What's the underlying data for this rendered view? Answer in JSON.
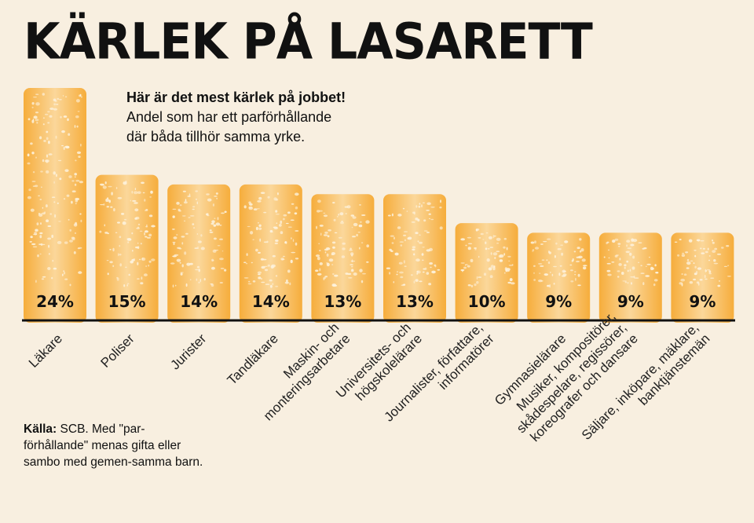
{
  "header": {
    "title": "KÄRLEK PÅ LASARETT",
    "subtitle_bold": "Här är det mest kärlek på jobbet!",
    "subtitle_line1": "Andel som har ett parförhållande",
    "subtitle_line2": "där båda tillhör samma yrke."
  },
  "source": {
    "label": "Källa:",
    "text": "SCB. Med \"par-förhållande\" menas gifta eller sambo med gemen-samma barn."
  },
  "colors": {
    "bar": "#f6ad3c",
    "bar_light": "#fbd79a",
    "speckle": "#fdf2dd",
    "axis": "#111111",
    "background": "#f8efe0"
  },
  "chart_data": {
    "type": "bar",
    "title": "KÄRLEK PÅ LASARETT",
    "unit": "%",
    "ylim": [
      0,
      24
    ],
    "grid": false,
    "categories": [
      [
        "Läkare"
      ],
      [
        "Poliser"
      ],
      [
        "Jurister"
      ],
      [
        "Tandläkare"
      ],
      [
        "Maskin- och",
        "monteringsarbetare"
      ],
      [
        "Universitets- och",
        "högskolelärare"
      ],
      [
        "Journalister, författare,",
        "informatörer"
      ],
      [
        "Gymnasielärare"
      ],
      [
        "Musiker, kompositörer,",
        "skådespelare, regissörer,",
        "koreografer och dansare"
      ],
      [
        "Säljare, inköpare, mäklare,",
        "banktjänstemän"
      ]
    ],
    "values": [
      24,
      15,
      14,
      14,
      13,
      13,
      10,
      9,
      9,
      9
    ],
    "value_labels": [
      "24%",
      "15%",
      "14%",
      "14%",
      "13%",
      "13%",
      "10%",
      "9%",
      "9%",
      "9%"
    ]
  }
}
